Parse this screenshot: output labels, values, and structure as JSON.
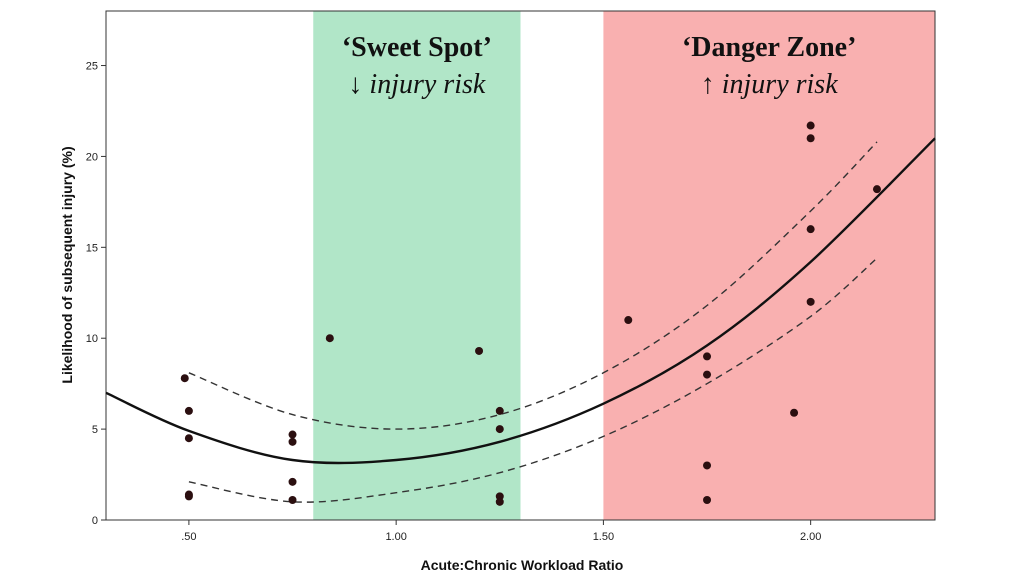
{
  "chart_data": {
    "type": "scatter",
    "xlabel": "Acute:Chronic Workload Ratio",
    "ylabel": "Likelihood of subsequent injury (%)",
    "xlim": [
      0.3,
      2.3
    ],
    "ylim": [
      0,
      28
    ],
    "x_ticks": [
      {
        "value": 0.5,
        "label": ".50"
      },
      {
        "value": 1.0,
        "label": "1.00"
      },
      {
        "value": 1.5,
        "label": "1.50"
      },
      {
        "value": 2.0,
        "label": "2.00"
      }
    ],
    "y_ticks": [
      {
        "value": 0,
        "label": "0"
      },
      {
        "value": 5,
        "label": "5"
      },
      {
        "value": 10,
        "label": "10"
      },
      {
        "value": 15,
        "label": "15"
      },
      {
        "value": 20,
        "label": "20"
      },
      {
        "value": 25,
        "label": "25"
      }
    ],
    "grid": false,
    "zones": [
      {
        "title": "‘Sweet Spot’",
        "arrow": "↓",
        "subtitle": "injury risk",
        "x_range": [
          0.8,
          1.3
        ],
        "color": "#b1e6c8"
      },
      {
        "title": "‘Danger Zone’",
        "arrow": "↑",
        "subtitle": "injury risk",
        "x_range": [
          1.5,
          2.3
        ],
        "color": "#f9b0b0"
      }
    ],
    "points": [
      {
        "x": 0.49,
        "y": 7.8
      },
      {
        "x": 0.5,
        "y": 6.0
      },
      {
        "x": 0.5,
        "y": 4.5
      },
      {
        "x": 0.5,
        "y": 1.4
      },
      {
        "x": 0.5,
        "y": 1.3
      },
      {
        "x": 0.75,
        "y": 4.7
      },
      {
        "x": 0.75,
        "y": 4.3
      },
      {
        "x": 0.75,
        "y": 2.1
      },
      {
        "x": 0.75,
        "y": 1.1
      },
      {
        "x": 0.84,
        "y": 10.0
      },
      {
        "x": 1.2,
        "y": 9.3
      },
      {
        "x": 1.25,
        "y": 6.0
      },
      {
        "x": 1.25,
        "y": 5.0
      },
      {
        "x": 1.25,
        "y": 1.3
      },
      {
        "x": 1.25,
        "y": 1.0
      },
      {
        "x": 1.56,
        "y": 11.0
      },
      {
        "x": 1.75,
        "y": 9.0
      },
      {
        "x": 1.75,
        "y": 8.0
      },
      {
        "x": 1.75,
        "y": 3.0
      },
      {
        "x": 1.75,
        "y": 1.1
      },
      {
        "x": 1.96,
        "y": 5.9
      },
      {
        "x": 2.0,
        "y": 21.7
      },
      {
        "x": 2.0,
        "y": 21.0
      },
      {
        "x": 2.0,
        "y": 16.0
      },
      {
        "x": 2.0,
        "y": 12.0
      },
      {
        "x": 2.16,
        "y": 18.2
      }
    ],
    "fit_curve": {
      "x": [
        0.3,
        0.5,
        0.75,
        1.0,
        1.25,
        1.5,
        1.75,
        2.0,
        2.3
      ],
      "y": [
        7.0,
        4.9,
        3.3,
        3.3,
        4.3,
        6.4,
        9.6,
        14.2,
        21.0
      ]
    },
    "ci_upper": {
      "x": [
        0.5,
        0.75,
        1.0,
        1.25,
        1.5,
        1.75,
        2.0,
        2.16
      ],
      "y": [
        8.1,
        5.8,
        5.0,
        5.8,
        8.1,
        11.8,
        17.0,
        20.8
      ]
    },
    "ci_lower": {
      "x": [
        0.5,
        0.75,
        1.0,
        1.25,
        1.5,
        1.75,
        2.0,
        2.16
      ],
      "y": [
        2.1,
        1.0,
        1.5,
        2.6,
        4.6,
        7.5,
        11.2,
        14.4
      ]
    },
    "colors": {
      "point": "#2b0f10",
      "line": "#111111",
      "axis": "#333333"
    }
  }
}
